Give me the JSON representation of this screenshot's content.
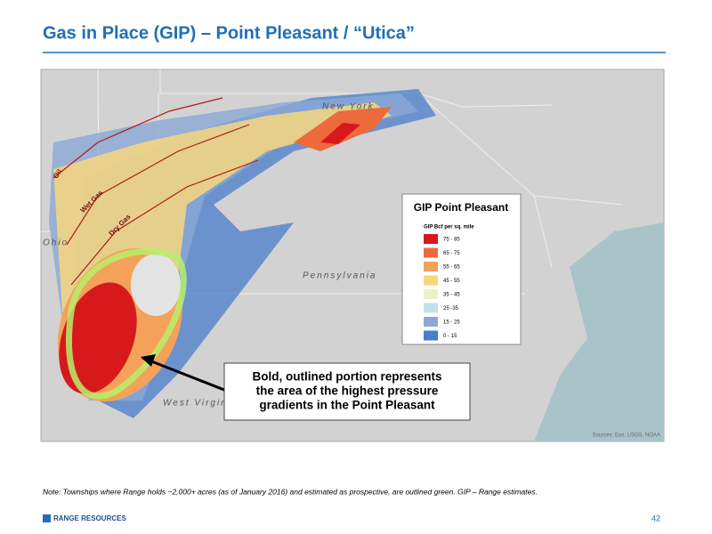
{
  "header": {
    "title": "Gas in Place (GIP) – Point Pleasant / “Utica”"
  },
  "map": {
    "labels": {
      "new_york": "New York",
      "ohio": "Ohio",
      "pennsylvania": "Pennsylvania",
      "west_virginia": "West Virginia",
      "oil": "Oil",
      "wet_gas": "Wet Gas",
      "dry_gas": "Dry Gas"
    },
    "source": "Sources: Esri, USGS, NOAA",
    "legend": {
      "title": "GIP Point Pleasant",
      "subtitle": "GIP Bcf per sq. mile",
      "items": [
        {
          "label": "75 - 85",
          "color": "#d7191c"
        },
        {
          "label": "65 - 75",
          "color": "#ec6a3c"
        },
        {
          "label": "55 - 65",
          "color": "#f4a259"
        },
        {
          "label": "45 - 55",
          "color": "#f7d77e"
        },
        {
          "label": "35 - 45",
          "color": "#eef0c6"
        },
        {
          "label": "25 -35",
          "color": "#bfe0e8"
        },
        {
          "label": "15 - 25",
          "color": "#8aa9d6"
        },
        {
          "label": "0 - 15",
          "color": "#4a7ccc"
        }
      ]
    },
    "callout": [
      "Bold, outlined portion represents",
      "the area of the highest pressure",
      "gradients in the Point Pleasant"
    ]
  },
  "footer": {
    "note": "Note: Townships where Range holds ~2,000+ acres (as of January 2016) and estimated as prospective, are outlined green.  GIP – Range estimates.",
    "logo": "RANGE RESOURCES",
    "page": "42"
  }
}
